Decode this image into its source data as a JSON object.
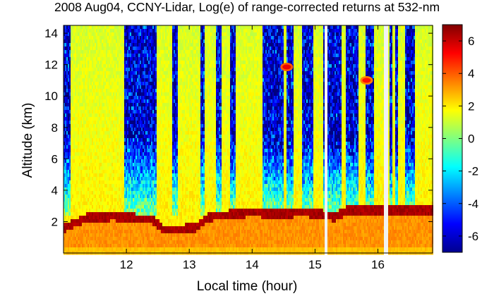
{
  "chart_data": {
    "type": "heatmap",
    "title": "2008 Aug04, CCNY-Lidar, Log(e) of range-corrected returns at 532-nm",
    "xlabel": "Local time (hour)",
    "ylabel": "Altitude (km)",
    "xlim": [
      11.0,
      16.87
    ],
    "ylim": [
      0.0,
      14.5
    ],
    "xticks": [
      12,
      13,
      14,
      15,
      16
    ],
    "yticks": [
      2,
      4,
      6,
      8,
      10,
      12,
      14
    ],
    "colorbar": {
      "ticks": [
        6,
        4,
        2,
        0,
        -2,
        -4,
        -6
      ],
      "range": [
        -7,
        7
      ],
      "colormap": "jet"
    },
    "features": {
      "boundary_layer_top_km": [
        [
          11.0,
          1.6
        ],
        [
          11.4,
          2.3
        ],
        [
          11.8,
          2.35
        ],
        [
          12.1,
          2.25
        ],
        [
          12.4,
          2.2
        ],
        [
          12.6,
          1.5
        ],
        [
          13.1,
          1.6
        ],
        [
          13.3,
          2.3
        ],
        [
          13.7,
          2.5
        ],
        [
          14.0,
          2.6
        ],
        [
          14.4,
          2.5
        ],
        [
          14.8,
          2.6
        ],
        [
          15.1,
          2.5
        ],
        [
          15.3,
          2.3
        ],
        [
          15.5,
          2.7
        ]
      ],
      "data_gaps_hour": [
        15.18,
        16.13
      ],
      "clouds": [
        {
          "x": 14.55,
          "y_km": 11.85,
          "value": 5.5
        },
        {
          "x": 15.82,
          "y_km": 11.0,
          "value": 5.0
        }
      ]
    }
  }
}
